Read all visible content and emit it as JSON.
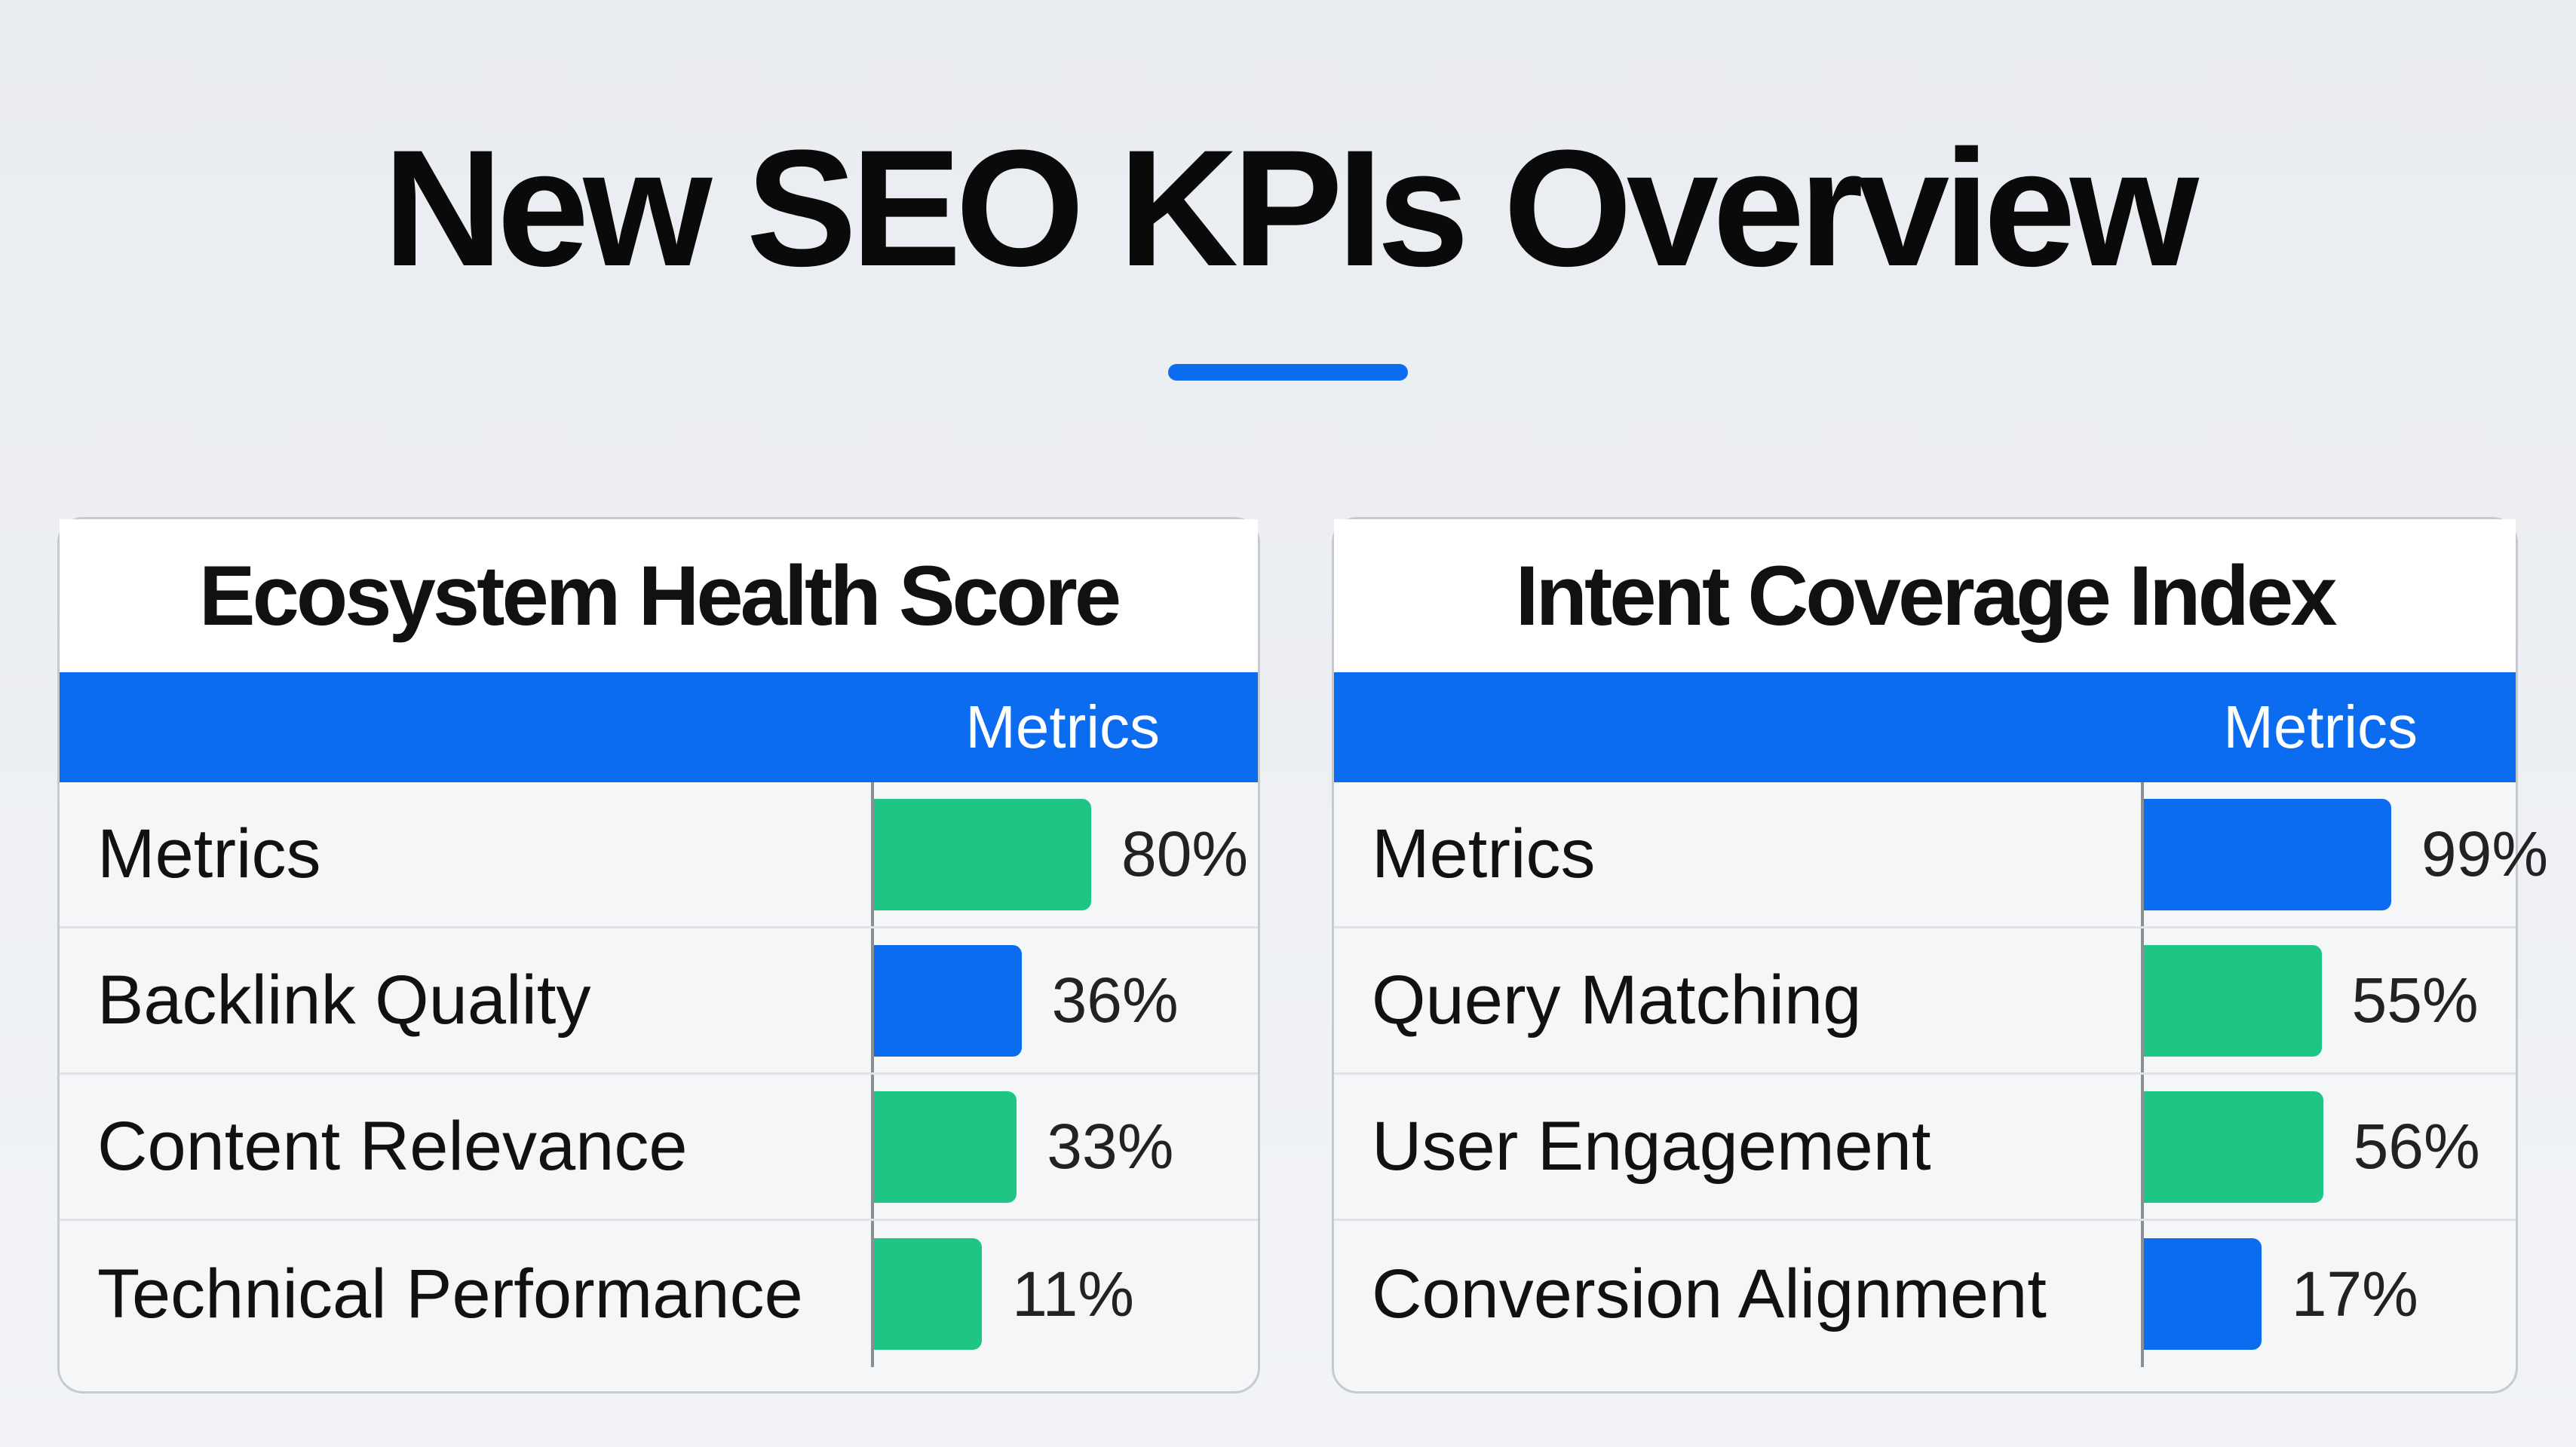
{
  "title": "New SEO KPIs Overview",
  "colors": {
    "blue": "#0b6cf0",
    "green": "#1fc585",
    "accent": "#0b6cf0"
  },
  "cards": [
    {
      "title": "Ecosystem Health Score",
      "header": "Metrics",
      "rows": [
        {
          "label": "Metrics",
          "value": 80,
          "display": "80%",
          "color": "green"
        },
        {
          "label": "Backlink Quality",
          "value": 36,
          "display": "36%",
          "color": "blue"
        },
        {
          "label": "Content Relevance",
          "value": 33,
          "display": "33%",
          "color": "green"
        },
        {
          "label": "Technical Performance",
          "value": 11,
          "display": "11%",
          "color": "green"
        }
      ]
    },
    {
      "title": "Intent Coverage Index",
      "header": "Metrics",
      "rows": [
        {
          "label": "Metrics",
          "value": 99,
          "display": "99%",
          "color": "blue"
        },
        {
          "label": "Query Matching",
          "value": 55,
          "display": "55%",
          "color": "green"
        },
        {
          "label": "User Engagement",
          "value": 56,
          "display": "56%",
          "color": "green"
        },
        {
          "label": "Conversion Alignment",
          "value": 17,
          "display": "17%",
          "color": "blue"
        }
      ]
    }
  ]
}
